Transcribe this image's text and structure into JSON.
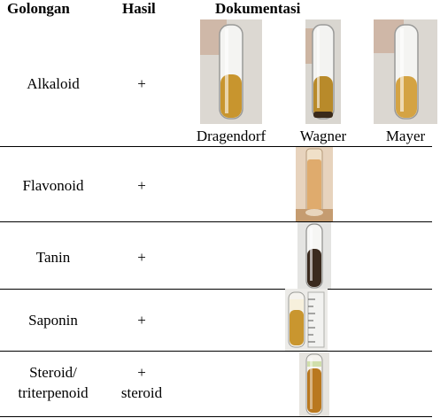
{
  "header": {
    "col_golongan": "Golongan",
    "col_hasil": "Hasil",
    "col_dokumentasi": "Dokumentasi"
  },
  "rows": [
    {
      "golongan": "Alkaloid",
      "hasil": "+",
      "photos": [
        {
          "icon": "test-tube-photo",
          "caption": "Dragendorf",
          "liquid_color": "#c8952e"
        },
        {
          "icon": "test-tube-photo",
          "caption": "Wagner",
          "liquid_color": "#b88a2a"
        },
        {
          "icon": "test-tube-photo",
          "caption": "Mayer",
          "liquid_color": "#d4a343"
        }
      ]
    },
    {
      "golongan": "Flavonoid",
      "hasil": "+",
      "photos": [
        {
          "icon": "test-tube-photo",
          "liquid_color": "#d99a4f"
        }
      ]
    },
    {
      "golongan": "Tanin",
      "hasil": "+",
      "photos": [
        {
          "icon": "test-tube-photo",
          "liquid_color": "#3a2a1e"
        }
      ]
    },
    {
      "golongan": "Saponin",
      "hasil": "+",
      "photos": [
        {
          "icon": "test-tube-photo",
          "liquid_color": "#c9962f"
        }
      ]
    },
    {
      "golongan_line1": "Steroid/",
      "golongan_line2": "triterpenoid",
      "hasil_line1": "+",
      "hasil_line2": "steroid",
      "photos": [
        {
          "icon": "test-tube-photo",
          "liquid_color": "#b9781f"
        }
      ]
    }
  ]
}
